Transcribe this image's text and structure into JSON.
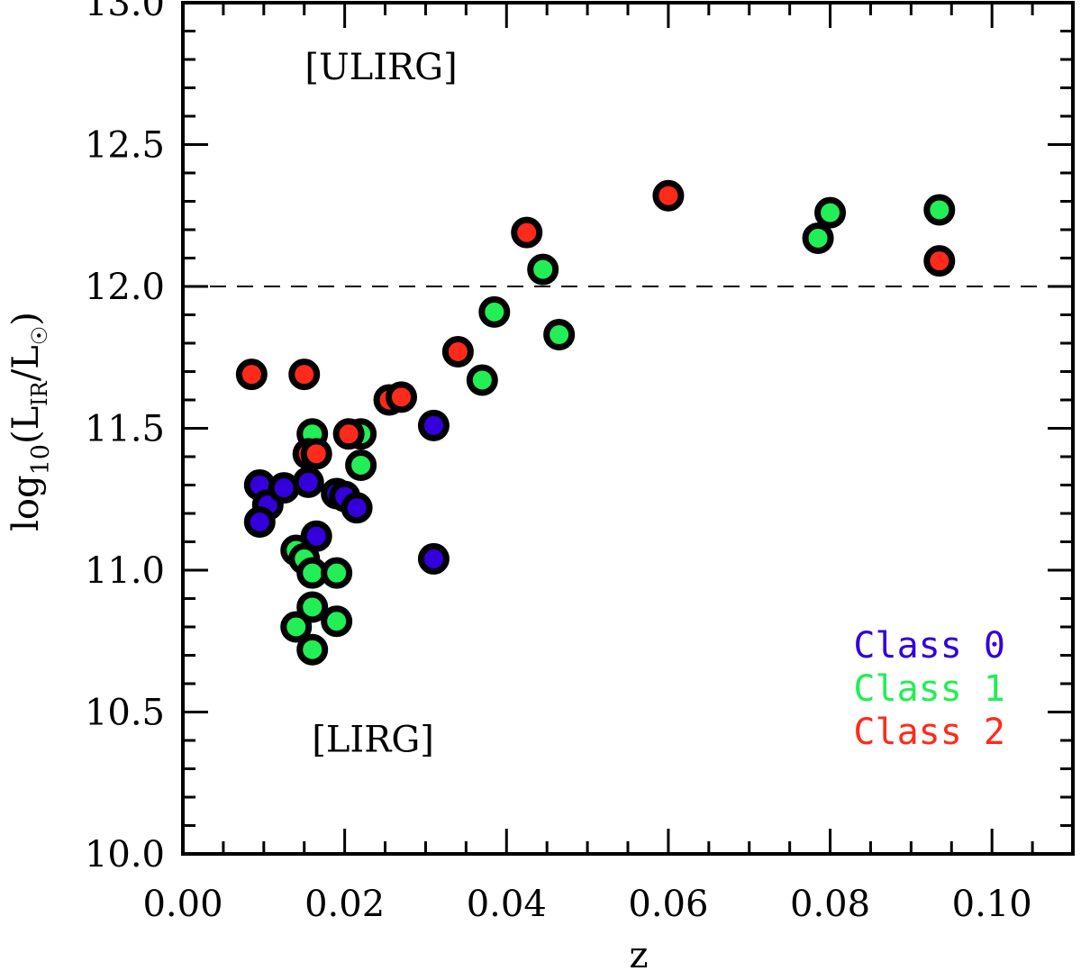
{
  "chart_data": {
    "type": "scatter",
    "title": "",
    "xlabel": "z",
    "ylabel": {
      "base": "log",
      "sub1": "10",
      "open": "(L",
      "sub2": "IR",
      "mid": "/L",
      "sub3": "☉",
      "close": ")"
    },
    "xlim": [
      0.0,
      0.11
    ],
    "ylim": [
      10.0,
      13.0
    ],
    "xticks": [
      "0.00",
      "0.02",
      "0.04",
      "0.06",
      "0.08",
      "0.10"
    ],
    "xtick_values": [
      0.0,
      0.02,
      0.04,
      0.06,
      0.08,
      0.1
    ],
    "yticks": [
      "10.0",
      "10.5",
      "11.0",
      "11.5",
      "12.0",
      "12.5",
      "13.0"
    ],
    "ytick_values": [
      10.0,
      10.5,
      11.0,
      11.5,
      12.0,
      12.5,
      13.0
    ],
    "reference_line": {
      "y": 12.0,
      "style": "dashed"
    },
    "annotations": [
      {
        "text": "[ULIRG]",
        "x": 0.0245,
        "y": 12.73
      },
      {
        "text": "[LIRG]",
        "x": 0.0235,
        "y": 10.36
      }
    ],
    "legend_position": "bottom-right",
    "series": [
      {
        "name": "Class 0",
        "color": "#3300dd",
        "points": [
          [
            0.0095,
            11.3
          ],
          [
            0.0105,
            11.23
          ],
          [
            0.0095,
            11.17
          ],
          [
            0.0125,
            11.29
          ],
          [
            0.0155,
            11.31
          ],
          [
            0.019,
            11.27
          ],
          [
            0.02,
            11.26
          ],
          [
            0.0215,
            11.22
          ],
          [
            0.0165,
            11.12
          ],
          [
            0.031,
            11.51
          ],
          [
            0.031,
            11.04
          ]
        ]
      },
      {
        "name": "Class 1",
        "color": "#22ee55",
        "points": [
          [
            0.016,
            11.48
          ],
          [
            0.022,
            11.48
          ],
          [
            0.022,
            11.37
          ],
          [
            0.014,
            11.07
          ],
          [
            0.015,
            11.04
          ],
          [
            0.016,
            10.99
          ],
          [
            0.019,
            10.99
          ],
          [
            0.016,
            10.87
          ],
          [
            0.014,
            10.8
          ],
          [
            0.019,
            10.82
          ],
          [
            0.016,
            10.72
          ],
          [
            0.037,
            11.67
          ],
          [
            0.0385,
            11.91
          ],
          [
            0.0445,
            12.06
          ],
          [
            0.0465,
            11.83
          ],
          [
            0.0785,
            12.17
          ],
          [
            0.08,
            12.26
          ],
          [
            0.0935,
            12.27
          ]
        ]
      },
      {
        "name": "Class 2",
        "color": "#ff2a1a",
        "points": [
          [
            0.0085,
            11.69
          ],
          [
            0.015,
            11.69
          ],
          [
            0.0155,
            11.41
          ],
          [
            0.0165,
            11.41
          ],
          [
            0.0205,
            11.48
          ],
          [
            0.0255,
            11.6
          ],
          [
            0.027,
            11.61
          ],
          [
            0.034,
            11.77
          ],
          [
            0.0425,
            12.19
          ],
          [
            0.06,
            12.32
          ],
          [
            0.0935,
            12.09
          ]
        ]
      }
    ]
  }
}
